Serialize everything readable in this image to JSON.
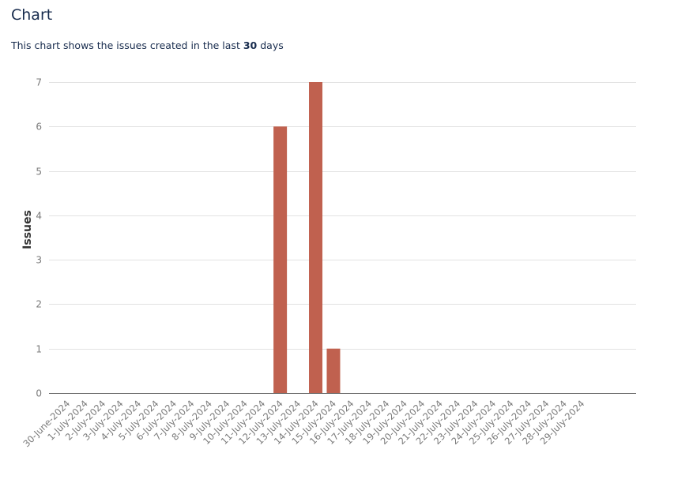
{
  "page": {
    "title": "Chart",
    "subtitle_prefix": "This chart shows the issues created in the last",
    "subtitle_days": "30",
    "subtitle_suffix": "days"
  },
  "chart_data": {
    "type": "bar",
    "title": "",
    "xlabel": "",
    "ylabel": "Issues",
    "ylim": [
      0,
      7
    ],
    "yticks": [
      0,
      1,
      2,
      3,
      4,
      5,
      6,
      7
    ],
    "grid": true,
    "bar_color": "#c0614f",
    "categories": [
      "30-June-2024",
      "1-July-2024",
      "2-July-2024",
      "3-July-2024",
      "4-July-2024",
      "5-July-2024",
      "6-July-2024",
      "7-July-2024",
      "8-July-2024",
      "9-July-2024",
      "10-July-2024",
      "11-July-2024",
      "12-July-2024",
      "13-July-2024",
      "14-July-2024",
      "15-July-2024",
      "16-July-2024",
      "17-July-2024",
      "18-July-2024",
      "19-July-2024",
      "20-July-2024",
      "21-July-2024",
      "22-July-2024",
      "23-July-2024",
      "24-July-2024",
      "25-July-2024",
      "26-July-2024",
      "27-July-2024",
      "28-July-2024",
      "29-July-2024"
    ],
    "values": [
      0,
      0,
      0,
      0,
      0,
      0,
      0,
      0,
      0,
      0,
      0,
      0,
      6,
      0,
      7,
      1,
      0,
      0,
      0,
      0,
      0,
      0,
      0,
      0,
      0,
      0,
      0,
      0,
      0,
      0
    ]
  }
}
